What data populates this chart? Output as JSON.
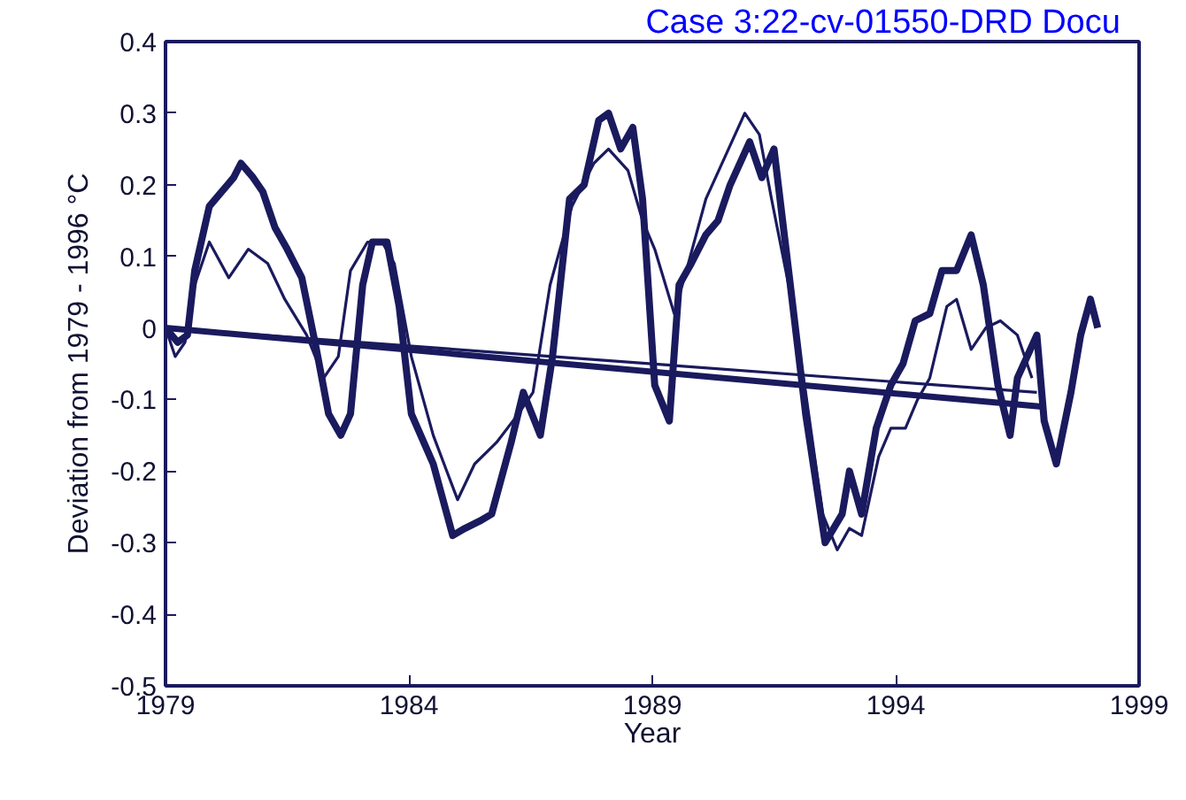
{
  "chart_data": {
    "type": "line",
    "xlabel": "Year",
    "ylabel": "Deviation from 1979 - 1996 °C",
    "xlim": [
      1979,
      1999
    ],
    "ylim": [
      -0.5,
      0.4
    ],
    "xticks": [
      1979,
      1984,
      1989,
      1994,
      1999
    ],
    "yticks": [
      -0.5,
      -0.4,
      -0.3,
      -0.2,
      -0.1,
      0,
      0.1,
      0.2,
      0.3,
      0.4
    ],
    "grid": false,
    "line_style": "solid",
    "marker": "none",
    "annotations": [
      "Case 3:22-cv-01550-DRD   Docu"
    ],
    "series": [
      {
        "color": "#1a1a5e",
        "x": [
          1979.0,
          1979.25,
          1979.45,
          1979.6,
          1979.9,
          1980.15,
          1980.4,
          1980.55,
          1980.8,
          1981.0,
          1981.25,
          1981.5,
          1981.8,
          1982.1,
          1982.35,
          1982.6,
          1982.8,
          1983.05,
          1983.25,
          1983.55,
          1983.8,
          1984.05,
          1984.5,
          1984.9,
          1985.15,
          1985.45,
          1985.7,
          1986.1,
          1986.35,
          1986.7,
          1986.95,
          1987.3,
          1987.6,
          1987.9,
          1988.1,
          1988.35,
          1988.6,
          1988.8,
          1989.05,
          1989.35,
          1989.55,
          1989.8,
          1990.1,
          1990.35,
          1990.6,
          1991.0,
          1991.25,
          1991.5,
          1991.8,
          1992.15,
          1992.55,
          1992.9,
          1993.05,
          1993.3,
          1993.6,
          1993.9,
          1994.15,
          1994.4,
          1994.7,
          1994.95,
          1995.25,
          1995.55,
          1995.8,
          1996.1,
          1996.35,
          1996.5,
          1996.9,
          1997.05,
          1997.3,
          1997.6,
          1997.8,
          1998.0,
          1998.15
        ],
        "values": [
          0.0,
          -0.02,
          -0.01,
          0.08,
          0.17,
          0.19,
          0.21,
          0.23,
          0.21,
          0.19,
          0.14,
          0.11,
          0.07,
          -0.03,
          -0.12,
          -0.15,
          -0.12,
          0.06,
          0.12,
          0.12,
          0.03,
          -0.12,
          -0.19,
          -0.29,
          -0.28,
          -0.27,
          -0.26,
          -0.16,
          -0.09,
          -0.15,
          -0.04,
          0.18,
          0.2,
          0.29,
          0.3,
          0.25,
          0.28,
          0.18,
          -0.08,
          -0.13,
          0.06,
          0.09,
          0.13,
          0.15,
          0.2,
          0.26,
          0.21,
          0.25,
          0.08,
          -0.12,
          -0.3,
          -0.26,
          -0.2,
          -0.26,
          -0.14,
          -0.08,
          -0.05,
          0.01,
          0.02,
          0.08,
          0.08,
          0.13,
          0.06,
          -0.08,
          -0.15,
          -0.07,
          -0.01,
          -0.13,
          -0.19,
          -0.09,
          -0.01,
          0.04,
          0.0
        ]
      },
      {
        "color": "#1a1a5e",
        "x": [
          1979.0,
          1979.2,
          1979.4,
          1979.6,
          1979.9,
          1980.3,
          1980.7,
          1981.1,
          1981.45,
          1981.9,
          1982.25,
          1982.55,
          1982.8,
          1983.15,
          1983.45,
          1983.7,
          1984.05,
          1984.5,
          1985.0,
          1985.35,
          1985.8,
          1986.25,
          1986.55,
          1986.9,
          1987.35,
          1987.8,
          1988.1,
          1988.5,
          1988.8,
          1989.05,
          1989.45,
          1989.7,
          1990.1,
          1990.5,
          1990.9,
          1991.2,
          1991.45,
          1991.8,
          1992.15,
          1992.5,
          1992.8,
          1993.05,
          1993.3,
          1993.65,
          1993.9,
          1994.2,
          1994.45,
          1994.7,
          1995.05,
          1995.25,
          1995.55,
          1995.85,
          1996.15,
          1996.5,
          1996.8
        ],
        "values": [
          0.0,
          -0.04,
          -0.02,
          0.06,
          0.12,
          0.07,
          0.11,
          0.09,
          0.04,
          -0.01,
          -0.07,
          -0.04,
          0.08,
          0.12,
          0.12,
          0.09,
          -0.04,
          -0.15,
          -0.24,
          -0.19,
          -0.16,
          -0.12,
          -0.09,
          0.06,
          0.17,
          0.23,
          0.25,
          0.22,
          0.15,
          0.11,
          0.02,
          0.08,
          0.18,
          0.24,
          0.3,
          0.27,
          0.18,
          0.06,
          -0.09,
          -0.26,
          -0.31,
          -0.28,
          -0.29,
          -0.18,
          -0.14,
          -0.14,
          -0.1,
          -0.07,
          0.03,
          0.04,
          -0.03,
          0.0,
          0.01,
          -0.01,
          -0.07
        ]
      },
      {
        "color": "#1a1a5e",
        "x": [
          1979.0,
          1997.0
        ],
        "values": [
          0.0,
          -0.11
        ]
      },
      {
        "color": "#1a1a5e",
        "x": [
          1979.0,
          1996.9
        ],
        "values": [
          0.0,
          -0.09
        ]
      }
    ]
  }
}
